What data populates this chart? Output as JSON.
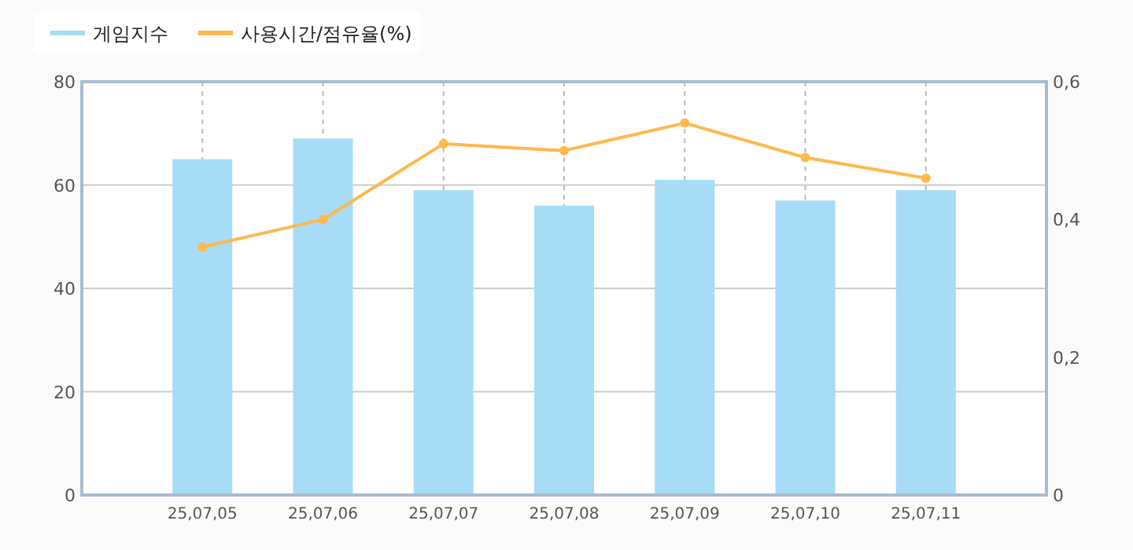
{
  "chart_data": {
    "type": "bar",
    "categories": [
      "25,07,05",
      "25,07,06",
      "25,07,07",
      "25,07,08",
      "25,07,09",
      "25,07,10",
      "25,07,11"
    ],
    "series": [
      {
        "name": "게임지수",
        "color": "#a6dcf5",
        "values": [
          65,
          69,
          59,
          56,
          61,
          57,
          59
        ]
      },
      {
        "name": "사용시간/점유율(%)",
        "type": "line",
        "axis": "y2",
        "color": "#ffb84d",
        "values": [
          0.36,
          0.4,
          0.51,
          0.5,
          0.54,
          0.49,
          0.46
        ]
      }
    ],
    "ylim": [
      0,
      80
    ],
    "yticks": [
      0,
      20,
      40,
      60,
      80
    ],
    "y2lim": [
      0,
      0.6
    ],
    "y2ticks": [
      {
        "value": 0,
        "label": "0"
      },
      {
        "value": 0.2,
        "label": "0,2"
      },
      {
        "value": 0.4,
        "label": "0,4"
      },
      {
        "value": 0.6,
        "label": "0,6"
      }
    ],
    "grid": true,
    "legend": "top left",
    "marker": "circle",
    "line_style": "solid"
  }
}
